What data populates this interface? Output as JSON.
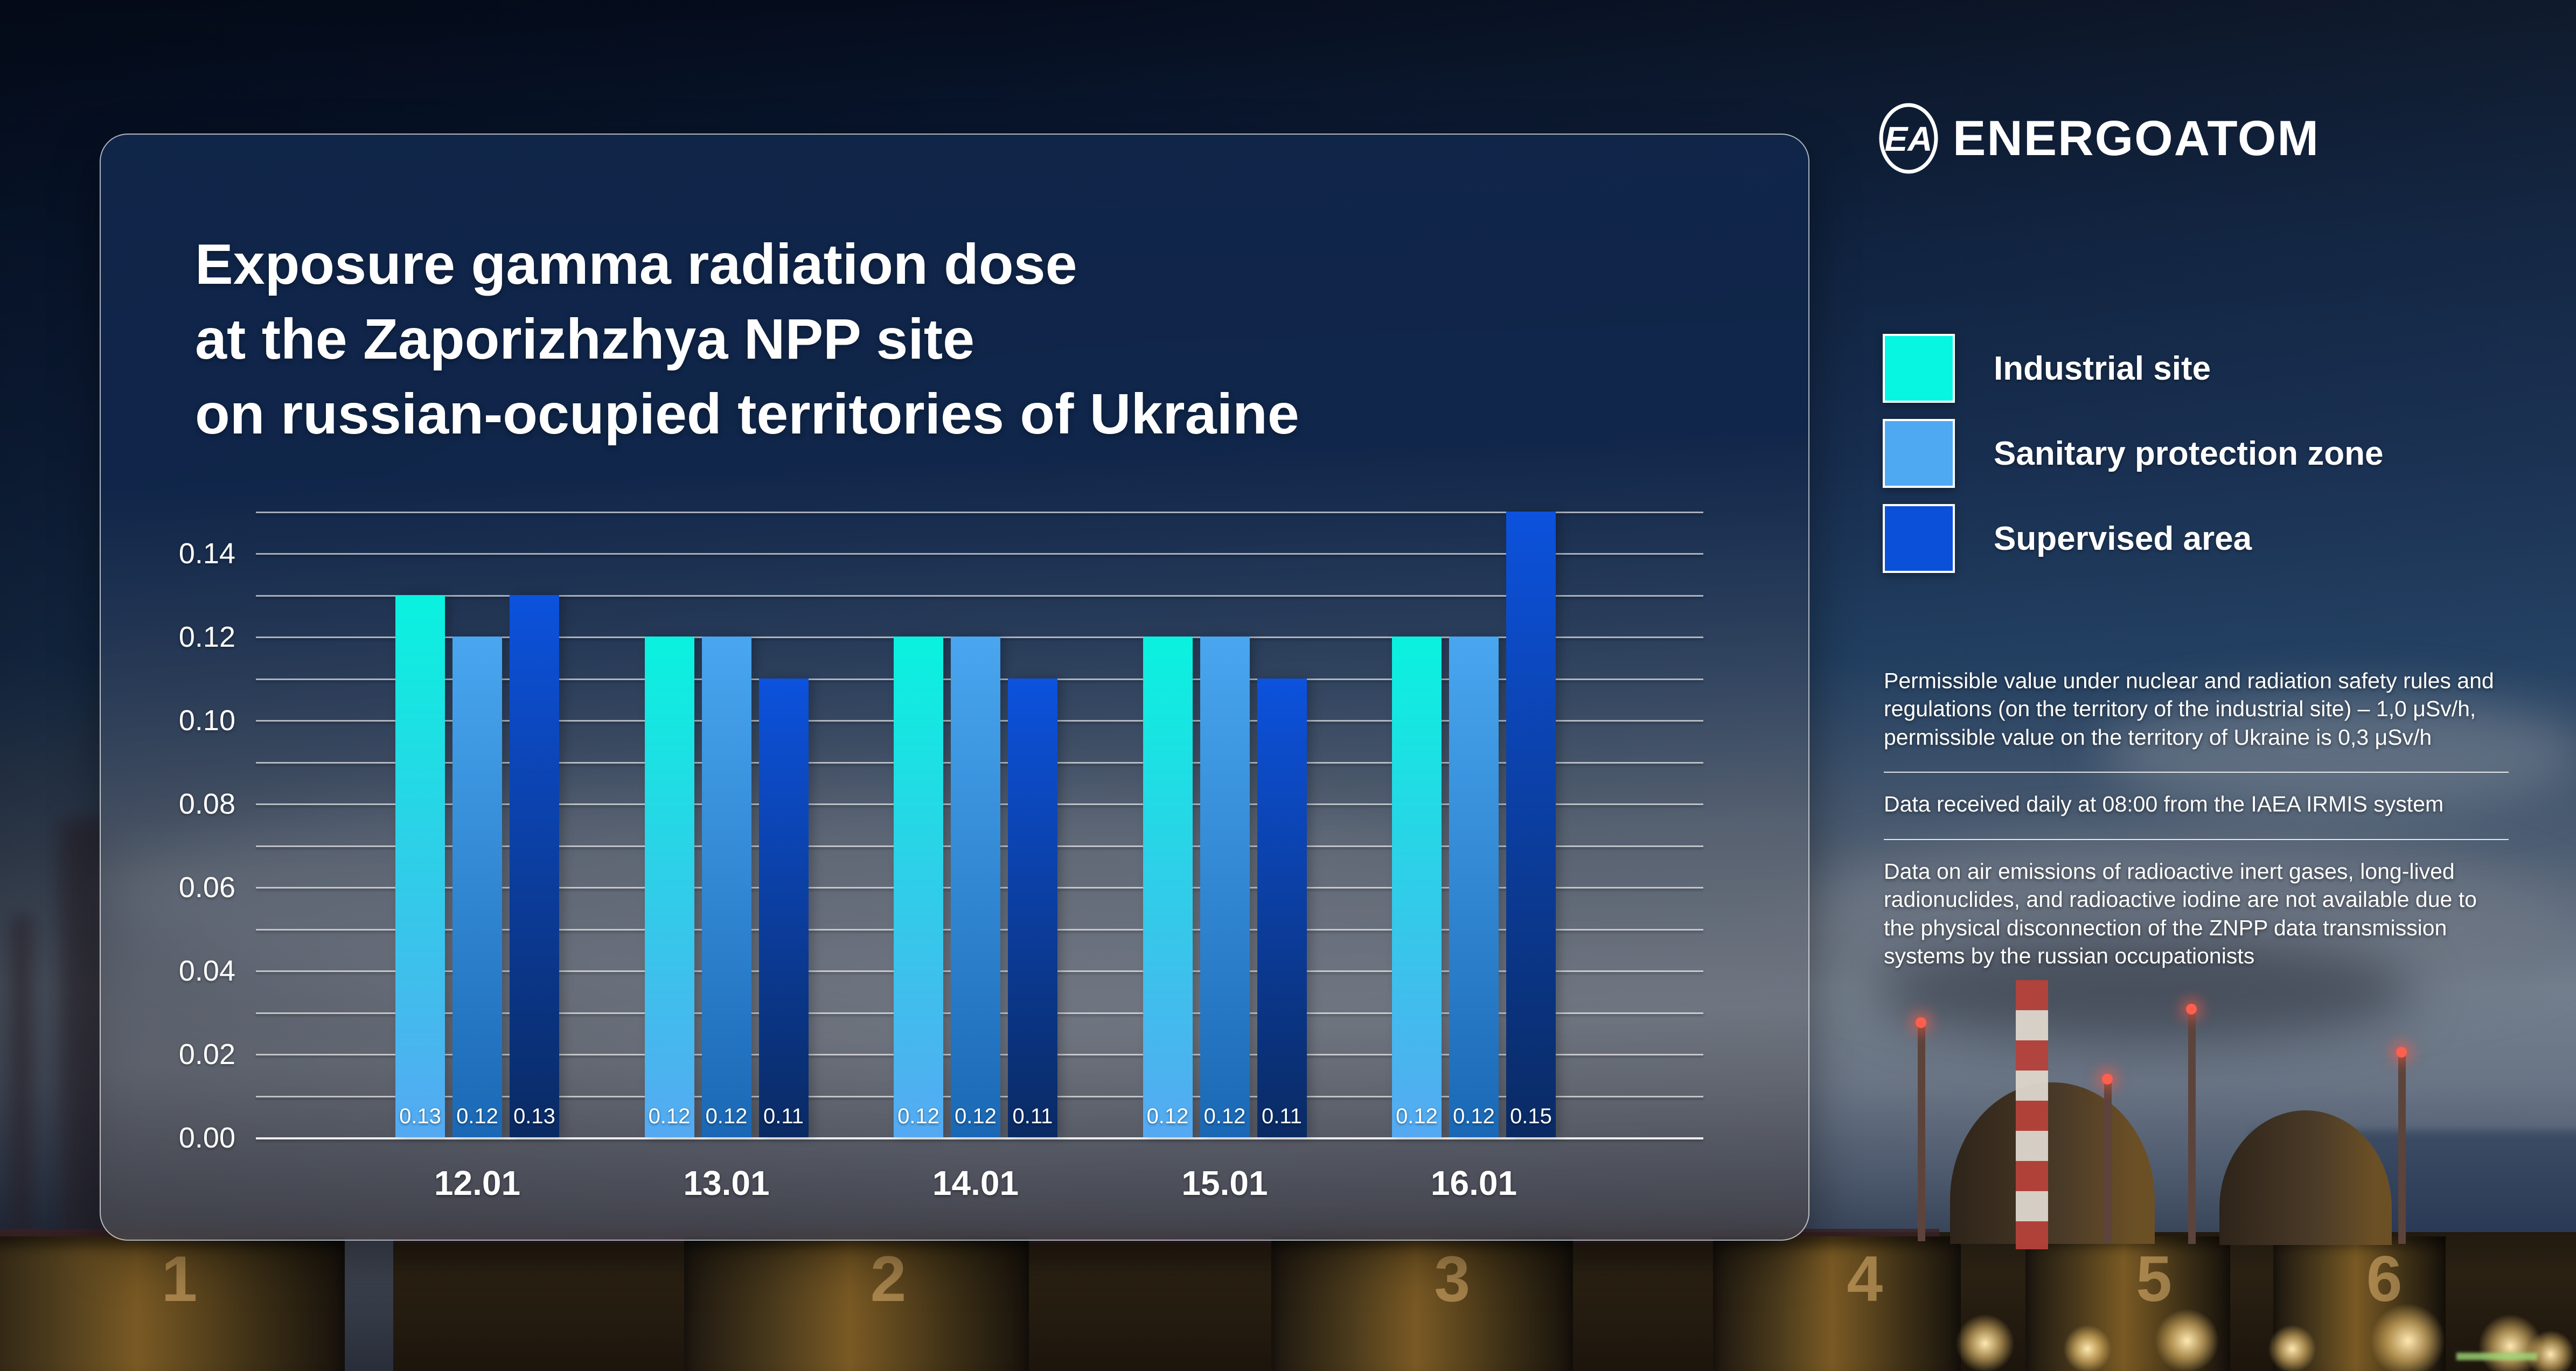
{
  "logo": {
    "brand": "ENERGOATOM",
    "monogram": "EA"
  },
  "title": "Exposure gamma radiation dose\nat the Zaporizhzhya NPP site\non russian-ocupied territories of Ukraine",
  "notes": {
    "permissible": "Permissible value under nuclear and radiation safety rules and regulations (on the territory of the industrial site) – 1,0 μSv/h, permissible value on the territory of Ukraine is 0,3 μSv/h",
    "data_source": "Data received daily at 08:00 from the IAEA IRMIS system",
    "emissions": "Data on air emissions of radioactive inert gases, long-lived radionuclides, and radioactive iodine are not available due to the physical disconnection of the ZNPP data transmission systems by the russian occupationists"
  },
  "background": {
    "unit_numbers": [
      "1",
      "2",
      "3",
      "4",
      "5",
      "6"
    ]
  },
  "chart_data": {
    "type": "bar",
    "title": "Exposure gamma radiation dose at the Zaporizhzhya NPP site",
    "categories": [
      "12.01",
      "13.01",
      "14.01",
      "15.01",
      "16.01"
    ],
    "series": [
      {
        "name": "Industrial site",
        "color": "#06f6e2",
        "values": [
          0.13,
          0.12,
          0.12,
          0.12,
          0.12
        ]
      },
      {
        "name": "Sanitary protection zone",
        "color": "#4fa9f2",
        "values": [
          0.12,
          0.12,
          0.12,
          0.12,
          0.12
        ]
      },
      {
        "name": "Supervised area",
        "color": "#0b50d8",
        "values": [
          0.13,
          0.11,
          0.11,
          0.11,
          0.15
        ]
      }
    ],
    "xlabel": "",
    "ylabel": "",
    "unit": "μSv/h",
    "ylim": [
      0,
      0.15
    ],
    "ytick_step": 0.02,
    "grid_step": 0.01,
    "grid": true,
    "value_labels": true,
    "legend_position": "right"
  }
}
